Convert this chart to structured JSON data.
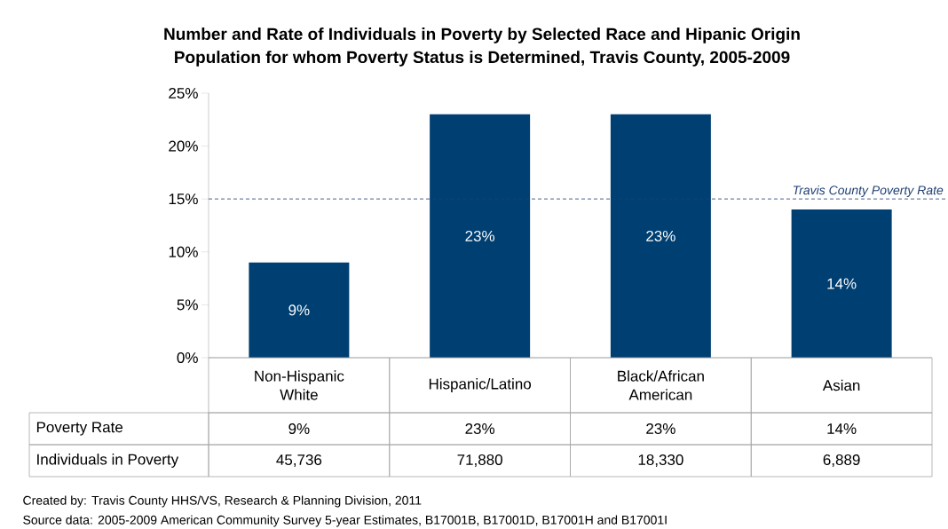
{
  "chart_data": {
    "type": "bar",
    "title": "Number and Rate of Individuals in Poverty by Selected Race and Hipanic Origin",
    "subtitle": "Population for whom Poverty Status is Determined, Travis County,  2005-2009",
    "categories": [
      "Non-Hispanic White",
      "Hispanic/Latino",
      "Black/African American",
      "Asian"
    ],
    "values": [
      9,
      23,
      23,
      14
    ],
    "value_labels": [
      "9%",
      "23%",
      "23%",
      "14%"
    ],
    "color": "#003f72",
    "ylim": [
      0,
      25
    ],
    "yticks": [
      {
        "value": 0,
        "label": "0%"
      },
      {
        "value": 5,
        "label": "5%"
      },
      {
        "value": 10,
        "label": "10%"
      },
      {
        "value": 15,
        "label": "15%"
      },
      {
        "value": 20,
        "label": "20%"
      },
      {
        "value": 25,
        "label": "25%"
      }
    ],
    "ref_lines": [
      {
        "axis": "y",
        "value": 15,
        "label": "Travis County Poverty Rate",
        "color": "#1f3f73",
        "line_style": "dashed"
      }
    ],
    "annotations": [
      "Poverty Rate",
      "Individuals in Poverty",
      "45,736",
      "71,880",
      "18,330",
      "6,889",
      "Created by: Travis County HHS/VS, Research & Planning Division, 2011",
      "Source data:  2005-2009 American Community Survey 5-year Estimates, B17001B, B17001D, B17001H and B17001I"
    ]
  }
}
